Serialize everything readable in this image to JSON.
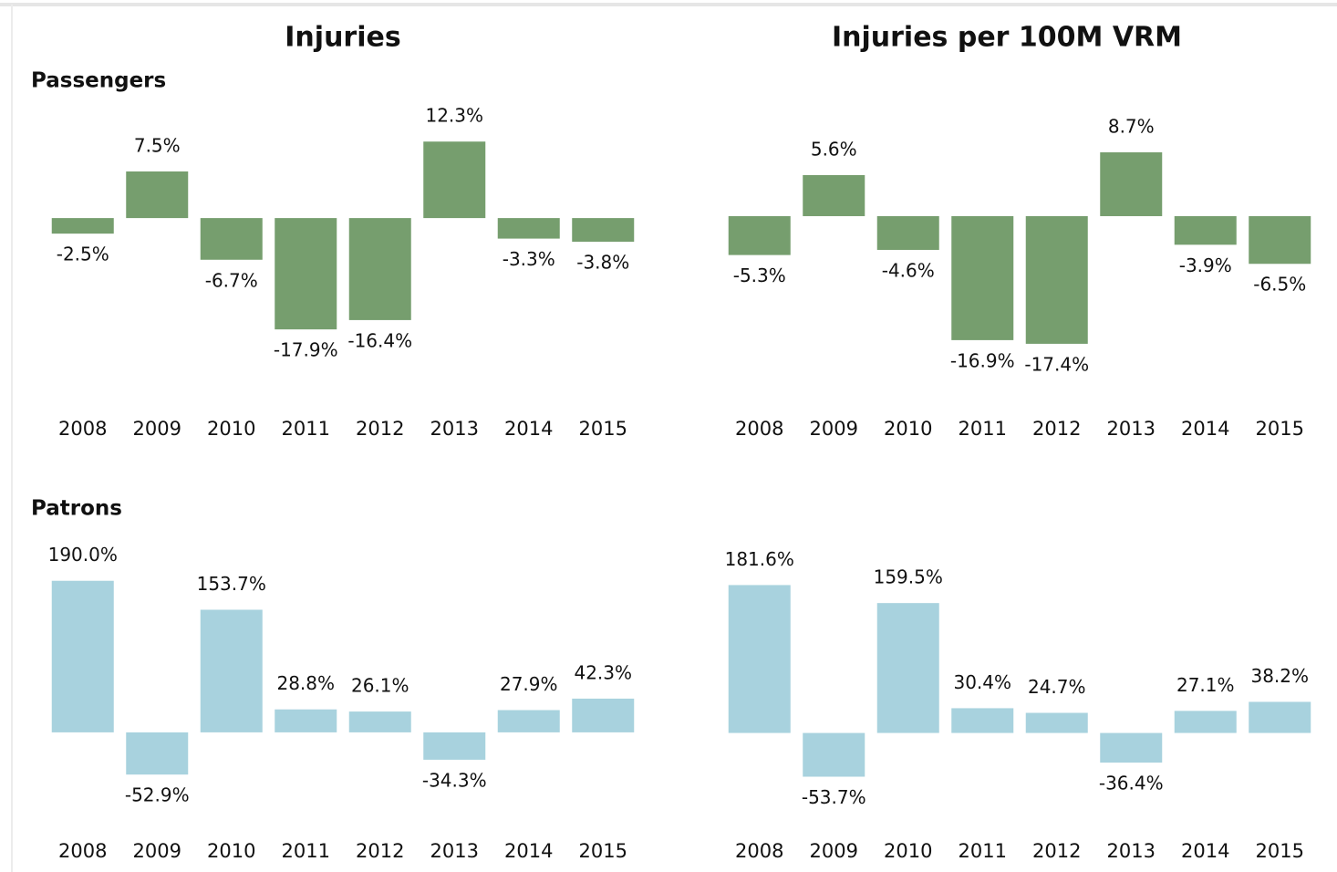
{
  "column_titles": [
    "Injuries",
    "Injuries per 100M VRM"
  ],
  "row_titles": [
    "Passengers",
    "Patrons"
  ],
  "chart_data": [
    {
      "type": "bar",
      "color": "#769e6e",
      "categories": [
        "2008",
        "2009",
        "2010",
        "2011",
        "2012",
        "2013",
        "2014",
        "2015"
      ],
      "values": [
        -2.5,
        7.5,
        -6.7,
        -17.9,
        -16.4,
        12.3,
        -3.3,
        -3.8
      ],
      "value_labels": [
        "-2.5%",
        "7.5%",
        "-6.7%",
        "-17.9%",
        "-16.4%",
        "12.3%",
        "-3.3%",
        "-3.8%"
      ],
      "ylim": [
        -28,
        16
      ]
    },
    {
      "type": "bar",
      "color": "#769e6e",
      "categories": [
        "2008",
        "2009",
        "2010",
        "2011",
        "2012",
        "2013",
        "2014",
        "2015"
      ],
      "values": [
        -5.3,
        5.6,
        -4.6,
        -16.9,
        -17.4,
        8.7,
        -3.9,
        -6.5
      ],
      "value_labels": [
        "-5.3%",
        "5.6%",
        "-4.6%",
        "-16.9%",
        "-17.4%",
        "8.7%",
        "-3.9%",
        "-6.5%"
      ],
      "ylim": [
        -24,
        13.3
      ]
    },
    {
      "type": "bar",
      "color": "#a8d2de",
      "categories": [
        "2008",
        "2009",
        "2010",
        "2011",
        "2012",
        "2013",
        "2014",
        "2015"
      ],
      "values": [
        190.0,
        -52.9,
        153.7,
        28.8,
        26.1,
        -34.3,
        27.9,
        42.3
      ],
      "value_labels": [
        "190.0%",
        "-52.9%",
        "153.7%",
        "28.8%",
        "26.1%",
        "-34.3%",
        "27.9%",
        "42.3%"
      ],
      "ylim": [
        -111,
        232
      ]
    },
    {
      "type": "bar",
      "color": "#a8d2de",
      "categories": [
        "2008",
        "2009",
        "2010",
        "2011",
        "2012",
        "2013",
        "2014",
        "2015"
      ],
      "values": [
        181.6,
        -53.7,
        159.5,
        30.4,
        24.7,
        -36.4,
        27.1,
        38.2
      ],
      "value_labels": [
        "181.6%",
        "-53.7%",
        "159.5%",
        "30.4%",
        "24.7%",
        "-36.4%",
        "27.1%",
        "38.2%"
      ],
      "ylim": [
        -108,
        228
      ]
    }
  ]
}
